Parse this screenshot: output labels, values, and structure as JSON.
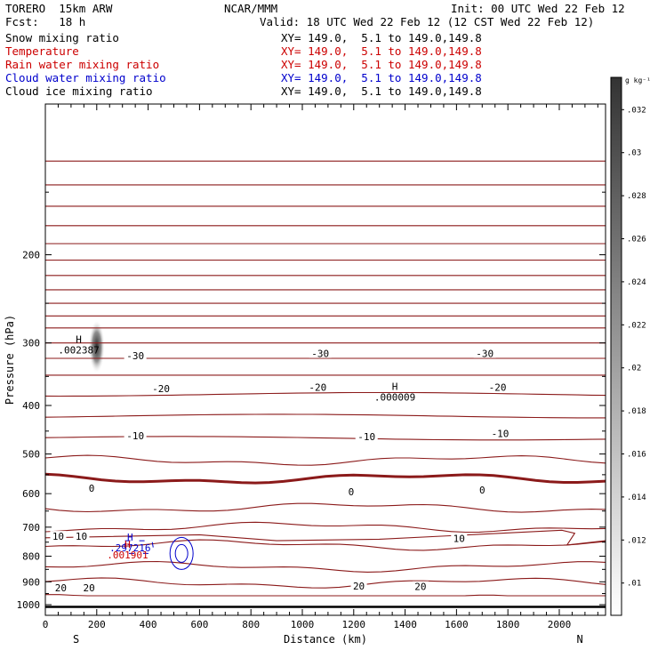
{
  "header": {
    "model": "TORERO  15km ARW",
    "org": "NCAR/MMM",
    "init": "Init: 00 UTC Wed 22 Feb 12",
    "fcst": "Fcst:   18 h",
    "valid": "Valid: 18 UTC Wed 22 Feb 12 (12 CST Wed 22 Feb 12)"
  },
  "fields": [
    {
      "label": "Snow mixing ratio",
      "xy": "XY= 149.0,  5.1 to 149.0,149.8",
      "color": "#000000"
    },
    {
      "label": "Temperature",
      "xy": "XY= 149.0,  5.1 to 149.0,149.8",
      "color": "#cc0000"
    },
    {
      "label": "Rain water mixing ratio",
      "xy": "XY= 149.0,  5.1 to 149.0,149.8",
      "color": "#cc0000"
    },
    {
      "label": "Cloud water mixing ratio",
      "xy": "XY= 149.0,  5.1 to 149.0,149.8",
      "color": "#0000cc"
    },
    {
      "label": "Cloud ice mixing ratio",
      "xy": "XY= 149.0,  5.1 to 149.0,149.8",
      "color": "#000000"
    }
  ],
  "chart_data": {
    "type": "contour-cross-section",
    "xlabel": "Distance (km)",
    "ylabel": "Pressure (hPa)",
    "xlim": [
      0,
      2180
    ],
    "ylim": [
      1050,
      100
    ],
    "y_scale": "log",
    "x_ticks": [
      0,
      200,
      400,
      600,
      800,
      1000,
      1200,
      1400,
      1600,
      1800,
      2000
    ],
    "y_ticks": [
      200,
      300,
      400,
      500,
      600,
      700,
      800,
      900,
      1000
    ],
    "endpoints": {
      "left": "S",
      "right": "N"
    },
    "temperature_labels": [
      {
        "label": "-30",
        "x": 350,
        "p": 318
      },
      {
        "label": "-30",
        "x": 1070,
        "p": 315
      },
      {
        "label": "-30",
        "x": 1710,
        "p": 315
      },
      {
        "label": "-20",
        "x": 450,
        "p": 370
      },
      {
        "label": "-20",
        "x": 1060,
        "p": 368
      },
      {
        "label": "-20",
        "x": 1760,
        "p": 368
      },
      {
        "label": "-10",
        "x": 350,
        "p": 460
      },
      {
        "label": "-10",
        "x": 1250,
        "p": 462
      },
      {
        "label": "-10",
        "x": 1770,
        "p": 455
      },
      {
        "label": "0",
        "x": 180,
        "p": 585
      },
      {
        "label": "0",
        "x": 1190,
        "p": 595
      },
      {
        "label": "0",
        "x": 1700,
        "p": 590
      },
      {
        "label": "10",
        "x": 50,
        "p": 730
      },
      {
        "label": "10",
        "x": 140,
        "p": 730
      },
      {
        "label": "10",
        "x": 1610,
        "p": 737
      },
      {
        "label": "20",
        "x": 60,
        "p": 925
      },
      {
        "label": "20",
        "x": 170,
        "p": 925
      },
      {
        "label": "20",
        "x": 1220,
        "p": 918
      },
      {
        "label": "20",
        "x": 1460,
        "p": 920
      }
    ],
    "maxima": [
      {
        "field": "snow",
        "label": "H",
        "value": ".002387",
        "x": 130,
        "p": 310
      },
      {
        "field": "cloud ice",
        "label": "H",
        "value": ".000009",
        "x": 1360,
        "p": 385
      },
      {
        "field": "cloud water",
        "label": "H",
        "value": ".297216",
        "x": 330,
        "p": 770
      },
      {
        "field": "rain water",
        "label": "H",
        "value": ".001901",
        "x": 320,
        "p": 795
      }
    ],
    "snow_shading_range": [
      270,
      345
    ],
    "colorbar": {
      "unit": "g kg⁻¹",
      "ticks": [
        ".01",
        ".012",
        ".014",
        ".016",
        ".018",
        ".02",
        ".022",
        ".024",
        ".026",
        ".028",
        ".03",
        ".032"
      ]
    }
  }
}
